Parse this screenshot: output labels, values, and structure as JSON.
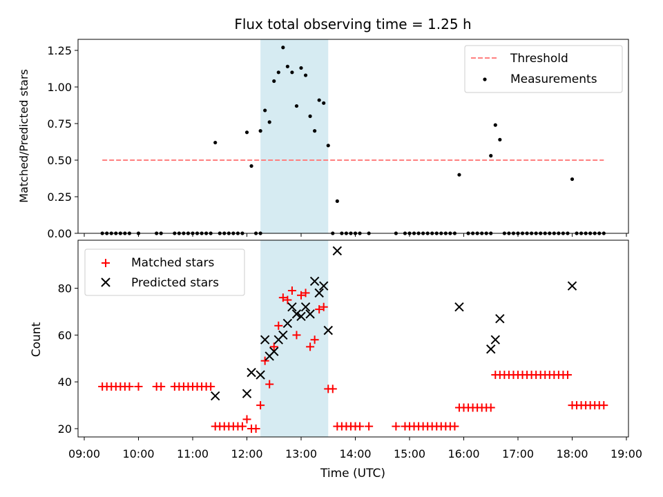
{
  "chart_data": [
    {
      "type": "scatter",
      "title": "Flux total observing time = 1.25 h",
      "xlabel": "",
      "ylabel": "Matched/Predicted stars",
      "xlim": [
        "09:00",
        "19:00"
      ],
      "ylim": [
        0,
        1.33
      ],
      "yticks": [
        0,
        0.25,
        0.5,
        0.75,
        1.0,
        1.25
      ],
      "ytick_labels": [
        "0.00",
        "0.25",
        "0.50",
        "0.75",
        "1.00",
        "1.25"
      ],
      "shaded_span": {
        "start": "12:15",
        "end": "13:30",
        "color": "#add8e6"
      },
      "legend": {
        "position": "top-right",
        "items": [
          {
            "label": "Threshold",
            "color": "#ff7f7f",
            "marker": "dashed-line"
          },
          {
            "label": "Measurements",
            "color": "#000000",
            "marker": "dot"
          }
        ]
      },
      "threshold": {
        "name": "Threshold",
        "y": 0.5,
        "x_start": "09:20",
        "x_end": "18:35",
        "color": "#ff7f7f"
      },
      "series": [
        {
          "name": "Measurements",
          "color": "#000000",
          "points": [
            [
              "09:20",
              0
            ],
            [
              "09:25",
              0
            ],
            [
              "09:30",
              0
            ],
            [
              "09:35",
              0
            ],
            [
              "09:40",
              0
            ],
            [
              "09:45",
              0
            ],
            [
              "09:50",
              0
            ],
            [
              "10:00",
              0
            ],
            [
              "10:20",
              0
            ],
            [
              "10:25",
              0
            ],
            [
              "10:40",
              0
            ],
            [
              "10:45",
              0
            ],
            [
              "10:50",
              0
            ],
            [
              "10:55",
              0
            ],
            [
              "11:00",
              0
            ],
            [
              "11:05",
              0
            ],
            [
              "11:10",
              0
            ],
            [
              "11:15",
              0
            ],
            [
              "11:20",
              0
            ],
            [
              "11:25",
              0.62
            ],
            [
              "11:30",
              0
            ],
            [
              "11:35",
              0
            ],
            [
              "11:40",
              0
            ],
            [
              "11:45",
              0
            ],
            [
              "11:50",
              0
            ],
            [
              "11:55",
              0
            ],
            [
              "12:00",
              0.69
            ],
            [
              "12:05",
              0.46
            ],
            [
              "12:10",
              0
            ],
            [
              "12:15",
              0
            ],
            [
              "12:15",
              0.7
            ],
            [
              "12:20",
              0.84
            ],
            [
              "12:25",
              0.76
            ],
            [
              "12:30",
              1.04
            ],
            [
              "12:35",
              1.1
            ],
            [
              "12:40",
              1.27
            ],
            [
              "12:45",
              1.14
            ],
            [
              "12:50",
              1.1
            ],
            [
              "12:55",
              0.87
            ],
            [
              "13:00",
              1.13
            ],
            [
              "13:05",
              1.08
            ],
            [
              "13:10",
              0.8
            ],
            [
              "13:15",
              0.7
            ],
            [
              "13:20",
              0.91
            ],
            [
              "13:25",
              0.89
            ],
            [
              "13:30",
              0.6
            ],
            [
              "13:35",
              0
            ],
            [
              "13:40",
              0.22
            ],
            [
              "13:45",
              0
            ],
            [
              "13:50",
              0
            ],
            [
              "13:55",
              0
            ],
            [
              "14:00",
              0
            ],
            [
              "14:05",
              0
            ],
            [
              "14:15",
              0
            ],
            [
              "14:45",
              0
            ],
            [
              "14:55",
              0
            ],
            [
              "15:00",
              0
            ],
            [
              "15:05",
              0
            ],
            [
              "15:10",
              0
            ],
            [
              "15:15",
              0
            ],
            [
              "15:20",
              0
            ],
            [
              "15:25",
              0
            ],
            [
              "15:30",
              0
            ],
            [
              "15:35",
              0
            ],
            [
              "15:40",
              0
            ],
            [
              "15:45",
              0
            ],
            [
              "15:50",
              0
            ],
            [
              "15:55",
              0.4
            ],
            [
              "16:05",
              0
            ],
            [
              "16:10",
              0
            ],
            [
              "16:15",
              0
            ],
            [
              "16:20",
              0
            ],
            [
              "16:25",
              0
            ],
            [
              "16:30",
              0
            ],
            [
              "16:30",
              0.53
            ],
            [
              "16:35",
              0.74
            ],
            [
              "16:40",
              0.64
            ],
            [
              "16:45",
              0
            ],
            [
              "16:50",
              0
            ],
            [
              "16:55",
              0
            ],
            [
              "17:00",
              0
            ],
            [
              "17:05",
              0
            ],
            [
              "17:10",
              0
            ],
            [
              "17:15",
              0
            ],
            [
              "17:20",
              0
            ],
            [
              "17:25",
              0
            ],
            [
              "17:30",
              0
            ],
            [
              "17:35",
              0
            ],
            [
              "17:40",
              0
            ],
            [
              "17:45",
              0
            ],
            [
              "17:50",
              0
            ],
            [
              "17:55",
              0
            ],
            [
              "18:00",
              0.37
            ],
            [
              "18:05",
              0
            ],
            [
              "18:10",
              0
            ],
            [
              "18:15",
              0
            ],
            [
              "18:20",
              0
            ],
            [
              "18:25",
              0
            ],
            [
              "18:30",
              0
            ],
            [
              "18:35",
              0
            ]
          ]
        }
      ]
    },
    {
      "type": "scatter",
      "title": "",
      "xlabel": "Time (UTC)",
      "ylabel": "Count",
      "xlim": [
        "09:00",
        "19:00"
      ],
      "xticks": [
        "09:00",
        "10:00",
        "11:00",
        "12:00",
        "13:00",
        "14:00",
        "15:00",
        "16:00",
        "17:00",
        "18:00",
        "19:00"
      ],
      "ylim": [
        16,
        99
      ],
      "yticks": [
        20,
        40,
        60,
        80
      ],
      "ytick_labels": [
        "20",
        "40",
        "60",
        "80"
      ],
      "shaded_span": {
        "start": "12:15",
        "end": "13:30",
        "color": "#add8e6"
      },
      "legend": {
        "position": "top-left",
        "items": [
          {
            "label": "Matched stars",
            "color": "#ff0000",
            "marker": "plus"
          },
          {
            "label": "Predicted stars",
            "color": "#000000",
            "marker": "x"
          }
        ]
      },
      "series": [
        {
          "name": "Matched stars",
          "color": "#ff0000",
          "marker": "plus",
          "points": [
            [
              "09:20",
              38
            ],
            [
              "09:25",
              38
            ],
            [
              "09:30",
              38
            ],
            [
              "09:35",
              38
            ],
            [
              "09:40",
              38
            ],
            [
              "09:45",
              38
            ],
            [
              "09:50",
              38
            ],
            [
              "10:00",
              38
            ],
            [
              "10:20",
              38
            ],
            [
              "10:25",
              38
            ],
            [
              "10:40",
              38
            ],
            [
              "10:45",
              38
            ],
            [
              "10:50",
              38
            ],
            [
              "10:55",
              38
            ],
            [
              "11:00",
              38
            ],
            [
              "11:05",
              38
            ],
            [
              "11:10",
              38
            ],
            [
              "11:15",
              38
            ],
            [
              "11:20",
              38
            ],
            [
              "11:25",
              21
            ],
            [
              "11:30",
              21
            ],
            [
              "11:35",
              21
            ],
            [
              "11:40",
              21
            ],
            [
              "11:45",
              21
            ],
            [
              "11:50",
              21
            ],
            [
              "11:55",
              21
            ],
            [
              "12:00",
              24
            ],
            [
              "12:05",
              20
            ],
            [
              "12:10",
              20
            ],
            [
              "12:15",
              30
            ],
            [
              "12:20",
              49
            ],
            [
              "12:25",
              39
            ],
            [
              "12:30",
              55
            ],
            [
              "12:35",
              64
            ],
            [
              "12:40",
              76
            ],
            [
              "12:45",
              75
            ],
            [
              "12:50",
              79
            ],
            [
              "12:55",
              60
            ],
            [
              "13:00",
              77
            ],
            [
              "13:05",
              78
            ],
            [
              "13:10",
              55
            ],
            [
              "13:15",
              58
            ],
            [
              "13:20",
              71
            ],
            [
              "13:25",
              72
            ],
            [
              "13:30",
              37
            ],
            [
              "13:35",
              37
            ],
            [
              "13:40",
              21
            ],
            [
              "13:45",
              21
            ],
            [
              "13:50",
              21
            ],
            [
              "13:55",
              21
            ],
            [
              "14:00",
              21
            ],
            [
              "14:05",
              21
            ],
            [
              "14:15",
              21
            ],
            [
              "14:45",
              21
            ],
            [
              "14:55",
              21
            ],
            [
              "15:00",
              21
            ],
            [
              "15:05",
              21
            ],
            [
              "15:10",
              21
            ],
            [
              "15:15",
              21
            ],
            [
              "15:20",
              21
            ],
            [
              "15:25",
              21
            ],
            [
              "15:30",
              21
            ],
            [
              "15:35",
              21
            ],
            [
              "15:40",
              21
            ],
            [
              "15:45",
              21
            ],
            [
              "15:50",
              21
            ],
            [
              "15:55",
              29
            ],
            [
              "16:00",
              29
            ],
            [
              "16:05",
              29
            ],
            [
              "16:10",
              29
            ],
            [
              "16:15",
              29
            ],
            [
              "16:20",
              29
            ],
            [
              "16:25",
              29
            ],
            [
              "16:30",
              29
            ],
            [
              "16:35",
              43
            ],
            [
              "16:40",
              43
            ],
            [
              "16:45",
              43
            ],
            [
              "16:50",
              43
            ],
            [
              "16:55",
              43
            ],
            [
              "17:00",
              43
            ],
            [
              "17:05",
              43
            ],
            [
              "17:10",
              43
            ],
            [
              "17:15",
              43
            ],
            [
              "17:20",
              43
            ],
            [
              "17:25",
              43
            ],
            [
              "17:30",
              43
            ],
            [
              "17:35",
              43
            ],
            [
              "17:40",
              43
            ],
            [
              "17:45",
              43
            ],
            [
              "17:50",
              43
            ],
            [
              "17:55",
              43
            ],
            [
              "18:00",
              30
            ],
            [
              "18:05",
              30
            ],
            [
              "18:10",
              30
            ],
            [
              "18:15",
              30
            ],
            [
              "18:20",
              30
            ],
            [
              "18:25",
              30
            ],
            [
              "18:30",
              30
            ],
            [
              "18:35",
              30
            ]
          ]
        },
        {
          "name": "Predicted stars",
          "color": "#000000",
          "marker": "x",
          "points": [
            [
              "11:25",
              34
            ],
            [
              "12:00",
              35
            ],
            [
              "12:05",
              44
            ],
            [
              "12:15",
              43
            ],
            [
              "12:20",
              58
            ],
            [
              "12:25",
              51
            ],
            [
              "12:30",
              53
            ],
            [
              "12:35",
              58
            ],
            [
              "12:40",
              60
            ],
            [
              "12:45",
              65
            ],
            [
              "12:50",
              72
            ],
            [
              "12:55",
              69
            ],
            [
              "13:00",
              68
            ],
            [
              "13:05",
              72
            ],
            [
              "13:10",
              69
            ],
            [
              "13:15",
              83
            ],
            [
              "13:20",
              78
            ],
            [
              "13:25",
              81
            ],
            [
              "13:30",
              62
            ],
            [
              "13:40",
              96
            ],
            [
              "15:55",
              72
            ],
            [
              "16:30",
              54
            ],
            [
              "16:35",
              58
            ],
            [
              "16:40",
              67
            ],
            [
              "18:00",
              81
            ]
          ]
        }
      ]
    }
  ]
}
